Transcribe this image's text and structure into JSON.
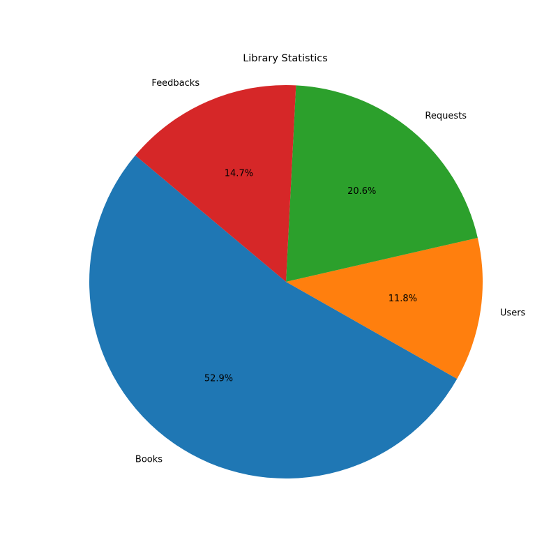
{
  "chart_data": {
    "type": "pie",
    "title": "Library Statistics",
    "categories": [
      "Books",
      "Users",
      "Requests",
      "Feedbacks"
    ],
    "values": [
      52.9,
      11.8,
      20.6,
      14.7
    ],
    "percent_labels": [
      "52.9%",
      "11.8%",
      "20.6%",
      "14.7%"
    ],
    "colors": [
      "#1f77b4",
      "#ff7f0e",
      "#2ca02c",
      "#d62728"
    ],
    "start_angle_deg": 140,
    "direction": "counterclockwise",
    "legend": "none"
  }
}
